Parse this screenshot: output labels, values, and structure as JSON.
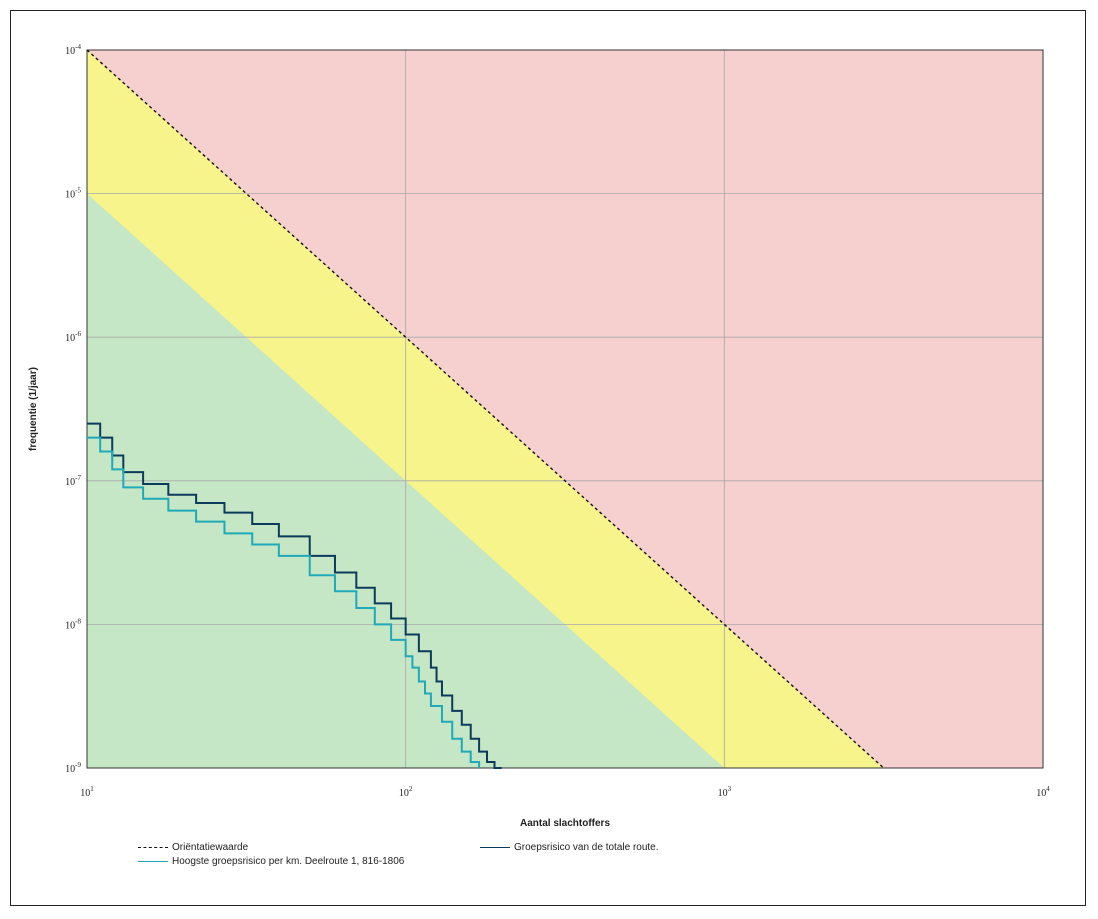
{
  "chart_data": {
    "type": "line",
    "title": "",
    "xlabel": "Aantal slachtoffers",
    "ylabel": "frequentie (1/jaar)",
    "x_scale": "log",
    "y_scale": "log",
    "xlim": [
      10,
      10000
    ],
    "ylim": [
      1e-09,
      0.0001
    ],
    "x_ticks": [
      {
        "value": 10,
        "label": "10",
        "exp": "1"
      },
      {
        "value": 100,
        "label": "10",
        "exp": "2"
      },
      {
        "value": 1000,
        "label": "10",
        "exp": "3"
      },
      {
        "value": 10000,
        "label": "10",
        "exp": "4"
      }
    ],
    "y_ticks": [
      {
        "value": 0.0001,
        "label": "10",
        "exp": "-4"
      },
      {
        "value": 1e-05,
        "label": "10",
        "exp": "-5"
      },
      {
        "value": 1e-06,
        "label": "10",
        "exp": "-6"
      },
      {
        "value": 1e-07,
        "label": "10",
        "exp": "-7"
      },
      {
        "value": 1e-08,
        "label": "10",
        "exp": "-8"
      },
      {
        "value": 1e-09,
        "label": "10",
        "exp": "-9"
      }
    ],
    "grid": true,
    "zones": {
      "red": "#f6cfcf",
      "yellow": "#f6f48a",
      "green": "#c5e7c5",
      "yellow_upper_line": {
        "x": [
          10,
          3162
        ],
        "y": [
          0.0001,
          1e-09
        ]
      },
      "green_upper_line": {
        "x": [
          10,
          1000
        ],
        "y": [
          1e-05,
          1e-09
        ]
      }
    },
    "series": [
      {
        "name": "Oriëntatiewaarde",
        "style": "dashed",
        "color": "#111111",
        "x": [
          10,
          3162
        ],
        "y": [
          0.0001,
          1e-09
        ]
      },
      {
        "name": "Groepsrisico van de totale route.",
        "style": "step",
        "color": "#0b3b5c",
        "x": [
          10,
          11,
          12,
          13,
          15,
          18,
          22,
          27,
          33,
          40,
          50,
          60,
          70,
          80,
          90,
          100,
          110,
          120,
          125,
          130,
          140,
          150,
          160,
          170,
          180,
          190,
          200
        ],
        "y": [
          2.5e-07,
          2e-07,
          1.5e-07,
          1.15e-07,
          9.5e-08,
          8e-08,
          7e-08,
          6e-08,
          5e-08,
          4.1e-08,
          3e-08,
          2.3e-08,
          1.8e-08,
          1.4e-08,
          1.1e-08,
          8.5e-09,
          6.5e-09,
          5e-09,
          4e-09,
          3.2e-09,
          2.5e-09,
          2e-09,
          1.6e-09,
          1.3e-09,
          1.1e-09,
          1e-09,
          1e-09
        ]
      },
      {
        "name": "Hoogste groepsrisico per km. Deelroute 1, 816-1806",
        "style": "step",
        "color": "#1fa9b9",
        "x": [
          10,
          11,
          12,
          13,
          15,
          18,
          22,
          27,
          33,
          40,
          50,
          60,
          70,
          80,
          90,
          100,
          105,
          110,
          115,
          120,
          130,
          140,
          150,
          160,
          170
        ],
        "y": [
          2e-07,
          1.6e-07,
          1.2e-07,
          9e-08,
          7.5e-08,
          6.2e-08,
          5.2e-08,
          4.3e-08,
          3.6e-08,
          3e-08,
          2.2e-08,
          1.7e-08,
          1.3e-08,
          1e-08,
          7.8e-09,
          6e-09,
          5e-09,
          4e-09,
          3.3e-09,
          2.7e-09,
          2.1e-09,
          1.6e-09,
          1.3e-09,
          1.1e-09,
          1e-09
        ]
      }
    ]
  }
}
